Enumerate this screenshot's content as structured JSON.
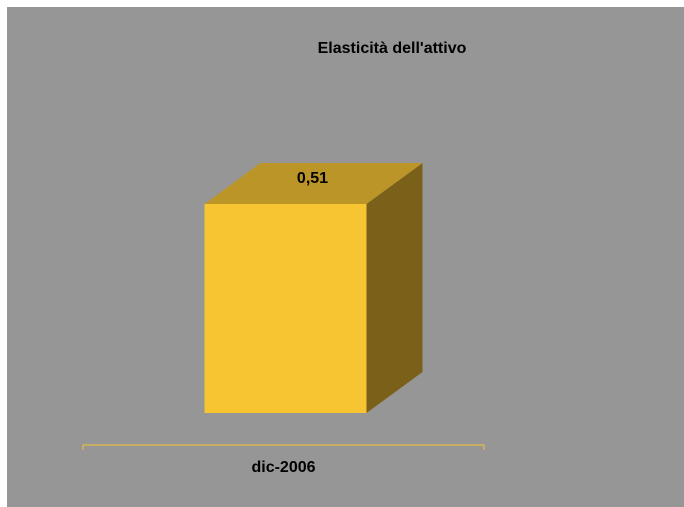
{
  "chart_data": {
    "type": "bar",
    "title": "Elasticità dell'attivo",
    "categories": [
      "dic-2006"
    ],
    "values": [
      0.51
    ],
    "value_labels": [
      "0,51"
    ],
    "ylim": [
      0,
      0.51
    ],
    "grid": false,
    "legend": "none",
    "colors": {
      "background": "#969696",
      "bar_front": "#F7C432",
      "bar_top": "#BC9528",
      "bar_side": "#7A6019",
      "axis": "#F7C432"
    }
  }
}
